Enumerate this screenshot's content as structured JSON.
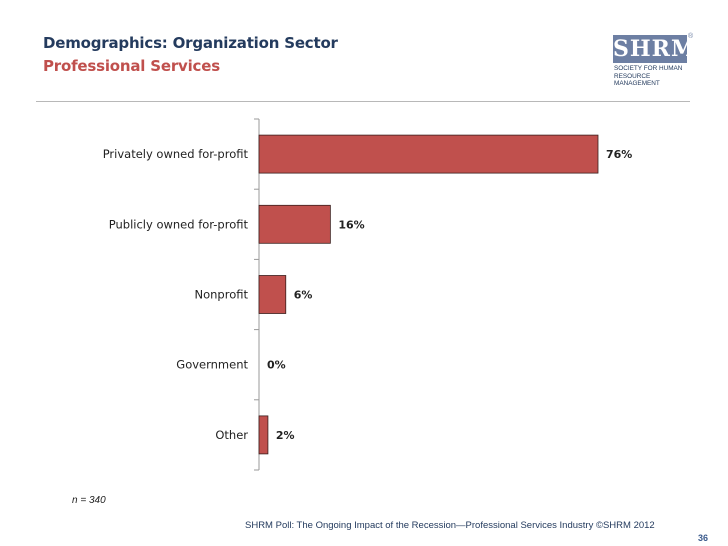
{
  "header": {
    "title": "Demographics: Organization Sector",
    "subtitle": "Professional Services"
  },
  "logo": {
    "mark": "SHRM",
    "registered": "®",
    "line1": "Society for Human",
    "line2": "Resource Management"
  },
  "chart_data": {
    "type": "bar",
    "orientation": "horizontal",
    "title": "Demographics: Organization Sector",
    "subtitle": "Professional Services",
    "categories": [
      "Privately owned for-profit",
      "Publicly owned for-profit",
      "Nonprofit",
      "Government",
      "Other"
    ],
    "values": [
      76,
      16,
      6,
      0,
      2
    ],
    "value_labels": [
      "76%",
      "16%",
      "6%",
      "0%",
      "2%"
    ],
    "xlim": [
      0,
      100
    ],
    "unit": "%",
    "grid": false,
    "bar_color": "#c0504d"
  },
  "footnote": {
    "n": "n = 340"
  },
  "footer": {
    "text": "SHRM Poll: The Ongoing Impact of the Recession—Professional Services Industry",
    "copyright": "©SHRM 2012",
    "page": "36"
  },
  "colors": {
    "title": "#243b5e",
    "subtitle": "#c0504d",
    "bar": "#c0504d"
  }
}
